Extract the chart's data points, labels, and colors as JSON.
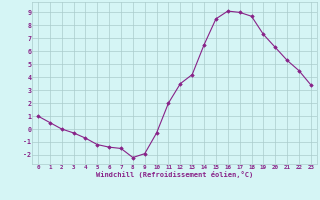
{
  "x": [
    0,
    1,
    2,
    3,
    4,
    5,
    6,
    7,
    8,
    9,
    10,
    11,
    12,
    13,
    14,
    15,
    16,
    17,
    18,
    19,
    20,
    21,
    22,
    23
  ],
  "y": [
    1.0,
    0.5,
    0.0,
    -0.3,
    -0.7,
    -1.2,
    -1.4,
    -1.5,
    -2.2,
    -1.9,
    -0.3,
    2.0,
    3.5,
    4.2,
    6.5,
    8.5,
    9.1,
    9.0,
    8.7,
    7.3,
    6.3,
    5.3,
    4.5,
    3.4
  ],
  "line_color": "#882288",
  "marker": "D",
  "marker_size": 1.8,
  "bg_color": "#d5f5f5",
  "grid_color": "#aacccc",
  "xlabel": "Windchill (Refroidissement éolien,°C)",
  "xlabel_color": "#882288",
  "tick_color": "#882288",
  "yticks": [
    -2,
    -1,
    0,
    1,
    2,
    3,
    4,
    5,
    6,
    7,
    8,
    9
  ],
  "xticks": [
    0,
    1,
    2,
    3,
    4,
    5,
    6,
    7,
    8,
    9,
    10,
    11,
    12,
    13,
    14,
    15,
    16,
    17,
    18,
    19,
    20,
    21,
    22,
    23
  ],
  "ylim": [
    -2.7,
    9.8
  ],
  "xlim": [
    -0.5,
    23.5
  ]
}
